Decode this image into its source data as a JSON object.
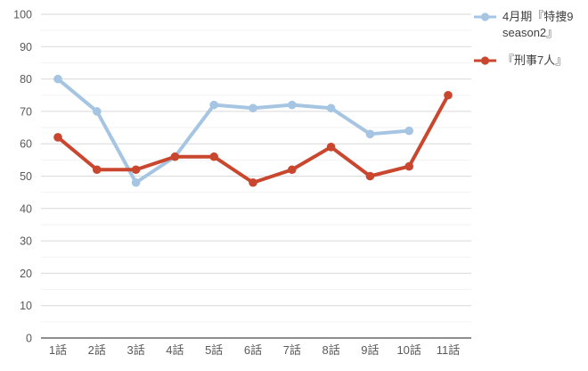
{
  "chart_data": {
    "type": "line",
    "title": "",
    "categories": [
      "1話",
      "2話",
      "3話",
      "4話",
      "5話",
      "6話",
      "7話",
      "8話",
      "9話",
      "10話",
      "11話"
    ],
    "series": [
      {
        "name": "4月期『特捜9 season2』",
        "color": "#A6C5E2",
        "values": [
          80,
          70,
          48,
          56,
          72,
          71,
          72,
          71,
          63,
          64,
          null
        ]
      },
      {
        "name": "『刑事7人』",
        "color": "#C8472E",
        "values": [
          62,
          52,
          52,
          56,
          56,
          48,
          52,
          59,
          50,
          53,
          75
        ]
      }
    ],
    "y_axis": {
      "min": 0,
      "max": 100,
      "major_step": 10,
      "minor_step": 5,
      "labels": [
        "0",
        "10",
        "20",
        "30",
        "40",
        "50",
        "60",
        "70",
        "80",
        "90",
        "100"
      ]
    },
    "legend_position": "right",
    "grid": true,
    "colors": {
      "major_grid": "#D9D9D9",
      "minor_grid": "#F2F2F2",
      "axis_line": "#4A4A4A",
      "tick_text": "#595959",
      "legend_text": "#404040",
      "background": "#FFFFFF"
    }
  }
}
